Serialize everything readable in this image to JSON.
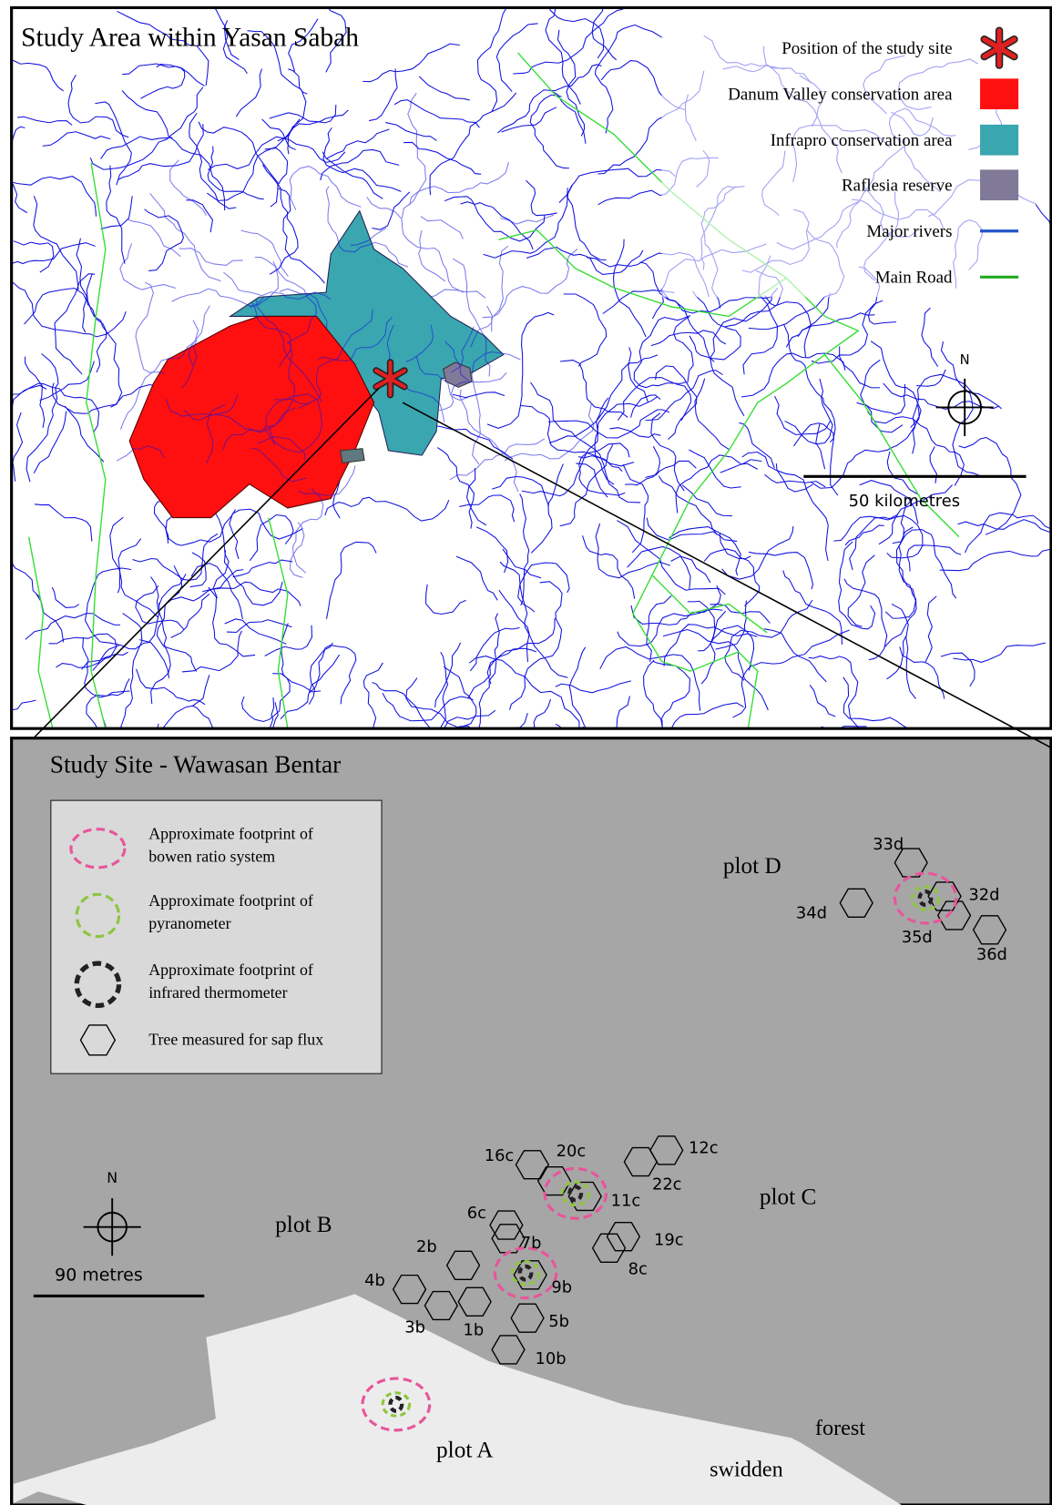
{
  "top_panel": {
    "title": "Study Area within Yasan Sabah",
    "legend": [
      {
        "label": "Position of the study site"
      },
      {
        "label": "Danum Valley conservation area"
      },
      {
        "label": "Infrapro conservation area"
      },
      {
        "label": "Raflesia reserve"
      },
      {
        "label": "Major rivers"
      },
      {
        "label": "Main Road"
      }
    ],
    "north_label": "N",
    "scale_label": "50 kilometres"
  },
  "bottom_panel": {
    "title": "Study Site - Wawasan Bentar",
    "legend": [
      {
        "lines": [
          "Approximate footprint of",
          "bowen ratio system"
        ]
      },
      {
        "lines": [
          "Approximate footprint of",
          "pyranometer"
        ]
      },
      {
        "lines": [
          "Approximate footprint of",
          "infrared thermometer"
        ]
      },
      {
        "lines": [
          "Tree measured for sap flux"
        ]
      }
    ],
    "plots": [
      "plot D",
      "plot C",
      "plot B",
      "plot A"
    ],
    "land_labels": [
      "forest",
      "swidden"
    ],
    "trees": [
      "33d",
      "32d",
      "34d",
      "35d",
      "36d",
      "16c",
      "20c",
      "12c",
      "22c",
      "11c",
      "6c",
      "7b",
      "19c",
      "8c",
      "2b",
      "9b",
      "4b",
      "3b",
      "1b",
      "5b",
      "10b"
    ],
    "north_label": "N",
    "scale_label": "90 metres"
  }
}
